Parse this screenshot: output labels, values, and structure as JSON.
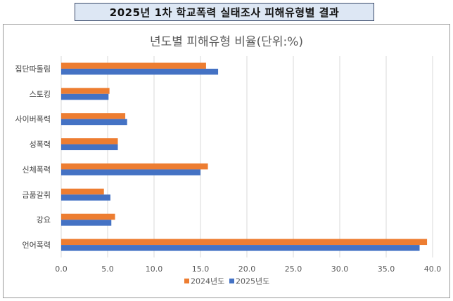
{
  "header": {
    "title": "2025년 1차 학교폭력 실태조사 피해유형별 결과"
  },
  "chart_data": {
    "type": "bar",
    "orientation": "horizontal",
    "title": "년도별 피해유형 비율(단위:%)",
    "categories": [
      "집단따돌림",
      "스토킹",
      "사이버폭력",
      "성폭력",
      "신체폭력",
      "금품갈취",
      "강요",
      "언어폭력"
    ],
    "series": [
      {
        "name": "2024년도",
        "color": "#ed7d31",
        "values": [
          15.6,
          5.2,
          6.9,
          6.1,
          15.8,
          4.6,
          5.8,
          39.4
        ]
      },
      {
        "name": "2025년도",
        "color": "#4472c4",
        "values": [
          16.9,
          5.1,
          7.1,
          6.1,
          15.0,
          5.3,
          5.4,
          38.6
        ]
      }
    ],
    "xlim": [
      0,
      40
    ],
    "ticks": [
      "0.0",
      "5.0",
      "10.0",
      "15.0",
      "20.0",
      "25.0",
      "30.0",
      "35.0",
      "40.0"
    ],
    "grid": true,
    "legend": "bottom"
  }
}
